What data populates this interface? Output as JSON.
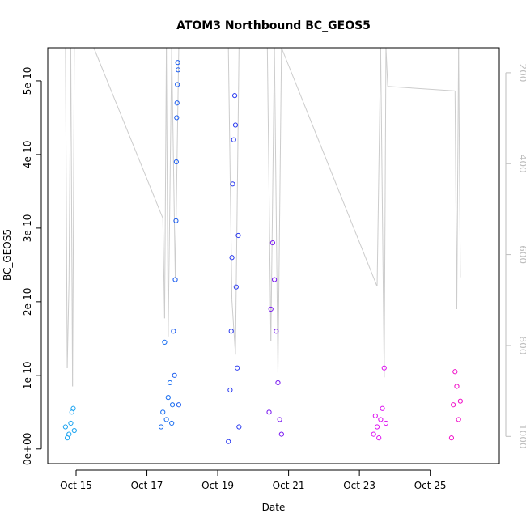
{
  "chart_data": {
    "type": "scatter",
    "title": "ATOM3 Northbound BC_GEOS5",
    "xlabel": "Date",
    "ylabel": "BC_GEOS5",
    "x_ticks": [
      "Oct 15",
      "Oct 17",
      "Oct 19",
      "Oct 21",
      "Oct 23",
      "Oct 25"
    ],
    "x_range_days": [
      14.2,
      26.95
    ],
    "x_tick_days": [
      15,
      17,
      19,
      21,
      23,
      25
    ],
    "y_ticks": [
      "0e+00",
      "1e-10",
      "2e-10",
      "3e-10",
      "4e-10",
      "5e-10"
    ],
    "y_tick_values": [
      0,
      1e-10,
      2e-10,
      3e-10,
      4e-10,
      5e-10
    ],
    "ylim": [
      -2e-11,
      5.45e-10
    ],
    "y2_ticks": [
      "200",
      "400",
      "600",
      "800",
      "1000"
    ],
    "y2_tick_values": [
      200,
      400,
      600,
      800,
      1000
    ],
    "y2lim": [
      1060,
      145
    ],
    "grid": false,
    "series": [
      {
        "color": "#1aa3f0",
        "x": [
          14.7,
          14.75,
          14.8,
          14.85,
          14.88,
          14.92,
          14.95
        ],
        "y": [
          3e-11,
          1.5e-11,
          2e-11,
          3.5e-11,
          5e-11,
          5.5e-11,
          2.5e-11
        ]
      },
      {
        "color": "#1a6ef0",
        "x": [
          17.4,
          17.45,
          17.5,
          17.55,
          17.6,
          17.65,
          17.7,
          17.72
        ],
        "y": [
          3e-11,
          5e-11,
          1.45e-10,
          4e-11,
          7e-11,
          9e-11,
          3.5e-11,
          6e-11
        ]
      },
      {
        "color": "#1a5cf0",
        "x": [
          17.75,
          17.78,
          17.8,
          17.82,
          17.83,
          17.84,
          17.85,
          17.86,
          17.87,
          17.88,
          17.9
        ],
        "y": [
          1.6e-10,
          1e-10,
          2.3e-10,
          3.1e-10,
          3.9e-10,
          4.5e-10,
          4.7e-10,
          4.95e-10,
          5.25e-10,
          5.15e-10,
          6e-11
        ]
      },
      {
        "color": "#2a3af0",
        "x": [
          19.3,
          19.35,
          19.38,
          19.4,
          19.42,
          19.45,
          19.48,
          19.5,
          19.52,
          19.55,
          19.58,
          19.6
        ],
        "y": [
          1e-11,
          8e-11,
          1.6e-10,
          2.6e-10,
          3.6e-10,
          4.2e-10,
          4.8e-10,
          4.4e-10,
          2.2e-10,
          1.1e-10,
          2.9e-10,
          3e-11
        ]
      },
      {
        "color": "#7a1af0",
        "x": [
          20.45,
          20.5,
          20.55,
          20.6,
          20.65,
          20.7,
          20.75,
          20.8
        ],
        "y": [
          5e-11,
          1.9e-10,
          2.8e-10,
          2.3e-10,
          1.6e-10,
          9e-11,
          4e-11,
          2e-11
        ]
      },
      {
        "color": "#dd10f0",
        "x": [
          23.4,
          23.45,
          23.5,
          23.55,
          23.6,
          23.65,
          23.7,
          23.75
        ],
        "y": [
          2e-11,
          4.5e-11,
          3e-11,
          1.5e-11,
          4e-11,
          5.5e-11,
          1.1e-10,
          3.5e-11
        ]
      },
      {
        "color": "#f010c8",
        "x": [
          25.6,
          25.65,
          25.7,
          25.75,
          25.8,
          25.85
        ],
        "y": [
          1.5e-11,
          6e-11,
          1.05e-10,
          8.5e-11,
          4e-11,
          6.5e-11
        ]
      }
    ],
    "pressure_line": {
      "color": "#cccccc",
      "x": [
        14.7,
        14.75,
        14.8,
        14.85,
        14.9,
        14.95,
        15.5,
        17.45,
        17.5,
        17.55,
        17.6,
        17.7,
        17.8,
        17.9,
        19.3,
        19.4,
        19.5,
        19.6,
        20.4,
        20.5,
        20.6,
        20.7,
        20.8,
        23.5,
        23.6,
        23.7,
        23.75,
        23.8,
        25.7,
        25.75,
        25.8,
        25.85
      ],
      "y": [
        145,
        850,
        660,
        145,
        890,
        145,
        145,
        520,
        740,
        145,
        780,
        145,
        650,
        145,
        145,
        700,
        820,
        145,
        145,
        790,
        145,
        860,
        145,
        670,
        145,
        870,
        145,
        230,
        240,
        720,
        145,
        650
      ]
    }
  }
}
